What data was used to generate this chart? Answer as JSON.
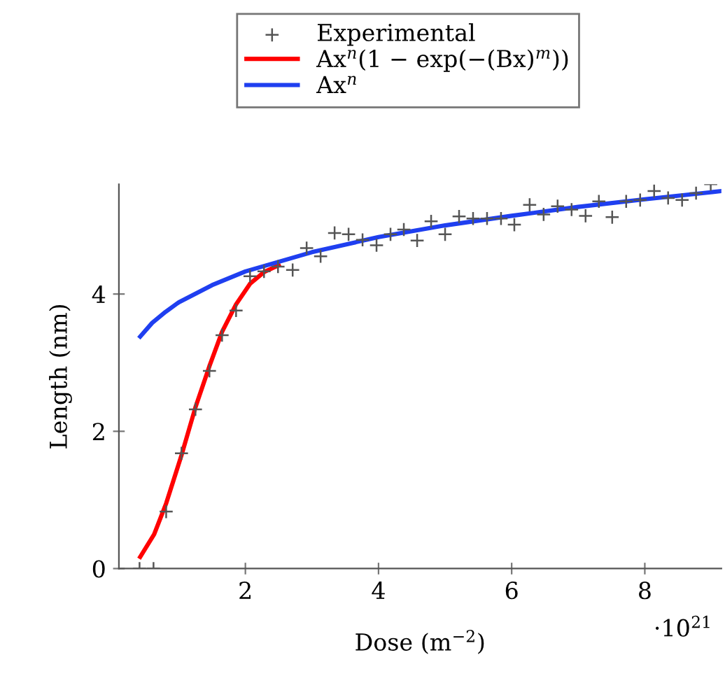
{
  "chart_data": {
    "type": "scatter",
    "xlabel": "Dose (m$^{−2}$)",
    "ylabel": "Length (nm)",
    "annotations": [
      "·10$^{21}$"
    ],
    "xlim": [
      0.1,
      9.15
    ],
    "ylim": [
      0,
      5.6
    ],
    "xticks": [
      2,
      4,
      6,
      8
    ],
    "yticks": [
      0,
      2,
      4
    ],
    "legend": "top",
    "grid": false,
    "series": [
      {
        "name": "Experimental",
        "marker": "cross",
        "color": "#555555",
        "x": [
          0.41,
          0.62,
          0.81,
          1.04,
          1.25,
          1.46,
          1.65,
          1.86,
          2.07,
          2.28,
          2.49,
          2.71,
          2.92,
          3.13,
          3.34,
          3.55,
          3.76,
          3.97,
          4.18,
          4.38,
          4.58,
          4.79,
          5.0,
          5.21,
          5.42,
          5.63,
          5.84,
          6.04,
          6.27,
          6.48,
          6.69,
          6.9,
          7.11,
          7.31,
          7.51,
          7.72,
          7.93,
          8.14,
          8.35,
          8.56,
          8.77,
          8.99
        ],
        "values": [
          0,
          0,
          0.83,
          1.68,
          2.32,
          2.88,
          3.4,
          3.76,
          4.26,
          4.33,
          4.4,
          4.35,
          4.67,
          4.55,
          4.89,
          4.87,
          4.79,
          4.71,
          4.87,
          4.94,
          4.78,
          5.06,
          4.87,
          5.13,
          5.1,
          5.1,
          5.1,
          5.01,
          5.3,
          5.16,
          5.28,
          5.23,
          5.14,
          5.35,
          5.12,
          5.35,
          5.37,
          5.5,
          5.4,
          5.37,
          5.47,
          5.6
        ]
      },
      {
        "name": "Ax$^{n}$(1 − exp(−(Bx)$^{m}$))",
        "type": "line",
        "marker": "none",
        "line_style": "solid",
        "color": "#ff0000",
        "x": [
          0.42,
          0.63,
          0.81,
          1.04,
          1.25,
          1.46,
          1.65,
          1.86,
          2.07,
          2.28,
          2.5
        ],
        "values": [
          0.17,
          0.5,
          0.95,
          1.65,
          2.35,
          2.95,
          3.45,
          3.85,
          4.15,
          4.32,
          4.42
        ]
      },
      {
        "name": "Ax$^{n}$",
        "type": "line",
        "marker": "none",
        "line_style": "solid",
        "color": "#1f3ff0",
        "x": [
          0.42,
          0.6,
          0.8,
          1,
          1.5,
          2,
          3,
          4,
          5,
          6,
          7,
          8,
          9.15
        ],
        "values": [
          3.38,
          3.58,
          3.74,
          3.88,
          4.13,
          4.33,
          4.61,
          4.83,
          5.0,
          5.14,
          5.27,
          5.38,
          5.5
        ]
      }
    ]
  }
}
